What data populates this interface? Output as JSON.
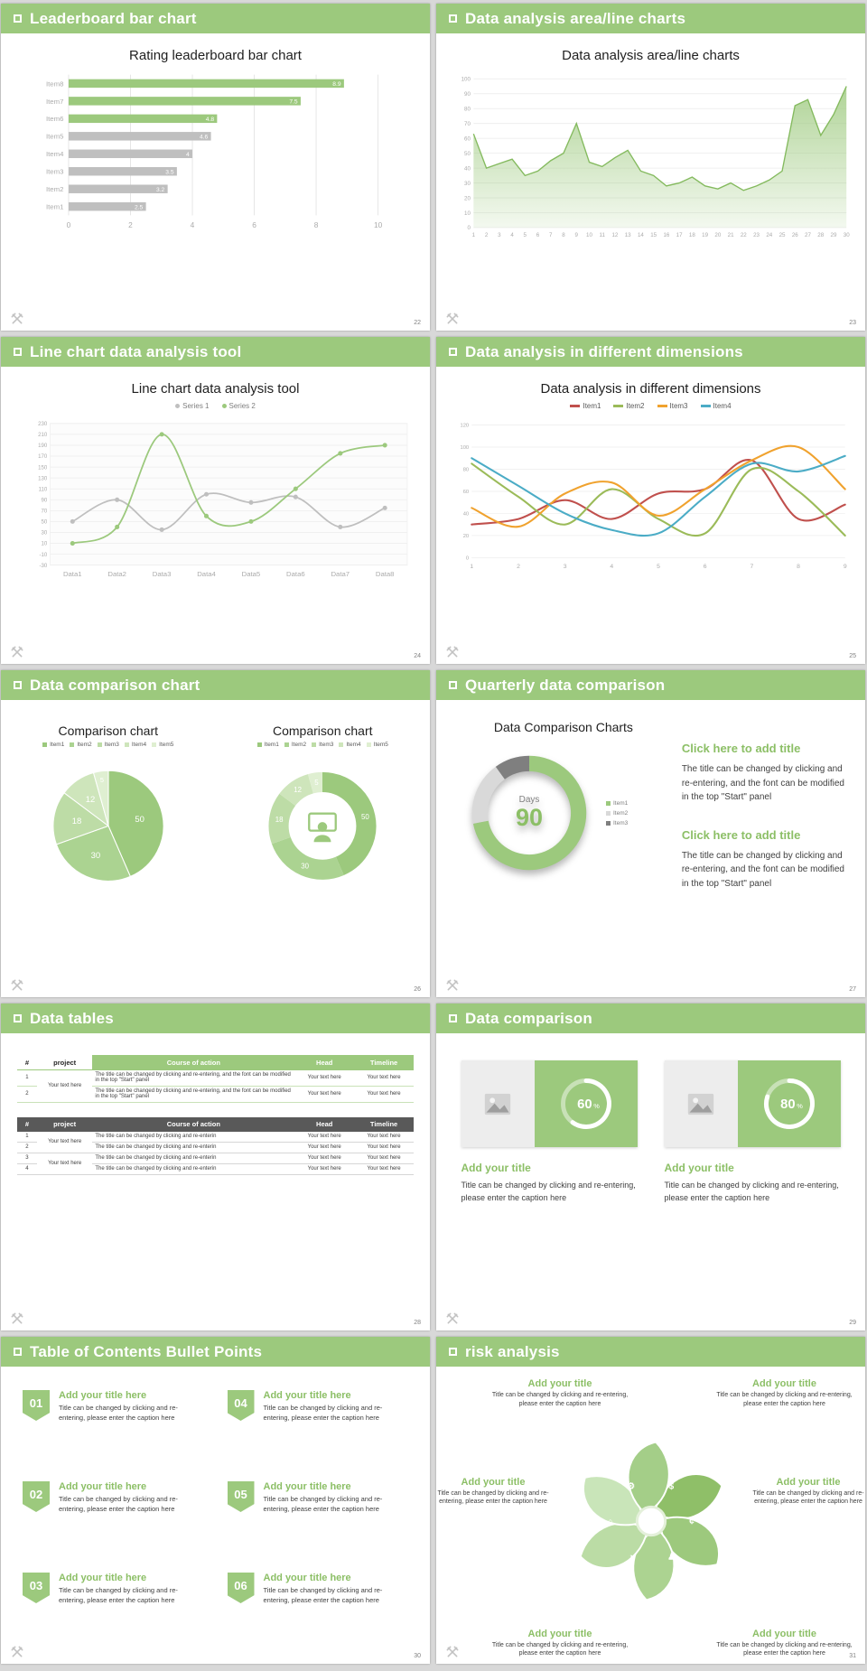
{
  "theme": {
    "green": "#9CC97D",
    "green_text": "#8CBF66",
    "gray_bar": "#BFBFBF",
    "table_dark": "#595959",
    "page_bg": "#D8D8D8"
  },
  "slides": [
    {
      "header": "Leaderboard bar chart",
      "page": "22",
      "chart_title": "Rating leaderboard bar chart"
    },
    {
      "header": "Data analysis area/line charts",
      "page": "23",
      "chart_title": "Data analysis area/line charts"
    },
    {
      "header": "Line chart data analysis tool",
      "page": "24",
      "chart_title": "Line chart data analysis tool",
      "legend": [
        "Series 1",
        "Series 2"
      ]
    },
    {
      "header": "Data analysis in different dimensions",
      "page": "25",
      "chart_title": "Data analysis in different dimensions",
      "legend": [
        "Item1",
        "Item2",
        "Item3",
        "Item4"
      ]
    },
    {
      "header": "Data comparison chart",
      "page": "26",
      "left": {
        "title": "Comparison chart",
        "legend": [
          "Item1",
          "Item2",
          "Item3",
          "Item4",
          "Item5"
        ]
      },
      "right": {
        "title": "Comparison chart",
        "legend": [
          "Item1",
          "Item2",
          "Item3",
          "Item4",
          "Item5"
        ]
      }
    },
    {
      "header": "Quarterly data comparison",
      "page": "27",
      "chart_title": "Data Comparison Charts",
      "gauge_label": "Days",
      "gauge_value": "90",
      "legend": [
        "Item1",
        "Item2",
        "Item3"
      ],
      "blocks": [
        {
          "title": "Click here to add title",
          "body": "The title can be changed by clicking and re-entering, and the font can be modified in the top \"Start\" panel"
        },
        {
          "title": "Click here to add title",
          "body": "The title can be changed by clicking and re-entering, and the font can be modified in the top \"Start\" panel"
        }
      ]
    },
    {
      "header": "Data tables",
      "page": "28"
    },
    {
      "header": "Data comparison",
      "page": "29",
      "cards": [
        {
          "percent": "60",
          "title": "Add your title",
          "body": "Title can be changed by clicking and re-entering, please enter the caption here"
        },
        {
          "percent": "80",
          "title": "Add your title",
          "body": "Title can be changed by clicking and re-entering, please enter the caption here"
        }
      ]
    },
    {
      "header": "Table of Contents Bullet Points",
      "page": "30",
      "items": [
        {
          "num": "01",
          "title": "Add your title here",
          "body": "Title can be changed by clicking and re-entering, please enter the caption here"
        },
        {
          "num": "02",
          "title": "Add your title here",
          "body": "Title can be changed by clicking and re-entering, please enter the caption here"
        },
        {
          "num": "03",
          "title": "Add your title here",
          "body": "Title can be changed by clicking and re-entering, please enter the caption here"
        },
        {
          "num": "04",
          "title": "Add your title here",
          "body": "Title can be changed by clicking and re-entering, please enter the caption here"
        },
        {
          "num": "05",
          "title": "Add your title here",
          "body": "Title can be changed by clicking and re-entering, please enter the caption here"
        },
        {
          "num": "06",
          "title": "Add your title here",
          "body": "Title can be changed by clicking and re-entering, please enter the caption here"
        }
      ]
    },
    {
      "header": "risk analysis",
      "page": "31",
      "items": [
        {
          "title": "Add your title",
          "body": "Title can be changed by clicking and re-entering, please enter the caption here"
        },
        {
          "title": "Add your title",
          "body": "Title can be changed by clicking and re-entering, please enter the caption here"
        },
        {
          "title": "Add your title",
          "body": "Title can be changed by clicking and re-entering, please enter the caption here"
        },
        {
          "title": "Add your title",
          "body": "Title can be changed by clicking and re-entering, please enter the caption here"
        },
        {
          "title": "Add your title",
          "body": "Title can be changed by clicking and re-entering, please enter the caption here"
        },
        {
          "title": "Add your title",
          "body": "Title can be changed by clicking and re-entering, please enter the caption here"
        }
      ],
      "icons": [
        {
          "name": "money-bag-icon",
          "glyph": "$"
        },
        {
          "name": "coins-icon",
          "glyph": "¢"
        },
        {
          "name": "people-icon",
          "glyph": "♟"
        },
        {
          "name": "pie-chart-icon",
          "glyph": "◔"
        },
        {
          "name": "building-icon",
          "glyph": "⌂"
        },
        {
          "name": "gear-icon",
          "glyph": "⚙"
        }
      ]
    }
  ],
  "chart_data": [
    {
      "slide": "Leaderboard bar chart",
      "type": "bar",
      "orientation": "horizontal",
      "title": "Rating leaderboard bar chart",
      "categories": [
        "Item1",
        "Item2",
        "Item3",
        "Item4",
        "Item5",
        "Item6",
        "Item7",
        "Item8"
      ],
      "values": [
        2.5,
        3.2,
        3.5,
        4,
        4.6,
        4.8,
        7.5,
        8.9
      ],
      "bar_colors": [
        "gray",
        "gray",
        "gray",
        "gray",
        "gray",
        "green",
        "green",
        "green"
      ],
      "xlim": [
        0,
        10
      ],
      "xticks": [
        0,
        2,
        4,
        6,
        8,
        10
      ]
    },
    {
      "slide": "Data analysis area/line charts",
      "type": "area",
      "title": "Data analysis area/line charts",
      "x": [
        1,
        2,
        3,
        4,
        5,
        6,
        7,
        8,
        9,
        10,
        11,
        12,
        13,
        14,
        15,
        16,
        17,
        18,
        19,
        20,
        21,
        22,
        23,
        24,
        25,
        26,
        27,
        28,
        29,
        30
      ],
      "values": [
        63,
        40,
        43,
        46,
        35,
        38,
        45,
        50,
        70,
        44,
        41,
        47,
        52,
        38,
        35,
        28,
        30,
        34,
        28,
        26,
        30,
        25,
        28,
        32,
        38,
        82,
        86,
        62,
        76,
        95
      ],
      "ylim": [
        0,
        100
      ],
      "yticks": [
        0,
        10,
        20,
        30,
        40,
        50,
        60,
        70,
        80,
        90,
        100
      ]
    },
    {
      "slide": "Line chart data analysis tool",
      "type": "line",
      "title": "Line chart data analysis tool",
      "categories": [
        "Data1",
        "Data2",
        "Data3",
        "Data4",
        "Data5",
        "Data6",
        "Data7",
        "Data8"
      ],
      "series": [
        {
          "name": "Series 1",
          "color": "#BFBFBF",
          "values": [
            50,
            90,
            35,
            100,
            85,
            95,
            40,
            75
          ]
        },
        {
          "name": "Series 2",
          "color": "#9CC97D",
          "values": [
            10,
            40,
            210,
            60,
            50,
            110,
            175,
            190
          ]
        }
      ],
      "ylim": [
        -30,
        230
      ],
      "ytick_step": 20,
      "markers": true
    },
    {
      "slide": "Data analysis in different dimensions",
      "type": "line",
      "title": "Data analysis in different dimensions",
      "x": [
        1,
        2,
        3,
        4,
        5,
        6,
        7,
        8,
        9
      ],
      "series": [
        {
          "name": "Item1",
          "color": "#C0504D",
          "values": [
            30,
            35,
            52,
            35,
            58,
            62,
            88,
            35,
            48
          ]
        },
        {
          "name": "Item2",
          "color": "#9BBB59",
          "values": [
            85,
            55,
            30,
            62,
            35,
            22,
            80,
            60,
            20
          ]
        },
        {
          "name": "Item3",
          "color": "#F0A22E",
          "values": [
            45,
            28,
            58,
            68,
            38,
            62,
            88,
            100,
            62
          ]
        },
        {
          "name": "Item4",
          "color": "#4BACC6",
          "values": [
            90,
            65,
            40,
            25,
            22,
            55,
            85,
            78,
            92
          ]
        }
      ],
      "ylim": [
        0,
        120
      ],
      "ytick_step": 20
    },
    {
      "slide": "Data comparison chart",
      "type": "pie",
      "title": "Comparison chart",
      "charts": [
        "pie",
        "donut"
      ],
      "labels": [
        "Item1",
        "Item2",
        "Item3",
        "Item4",
        "Item5"
      ],
      "values": [
        50,
        30,
        18,
        12,
        5
      ],
      "colors": [
        "#9CC97D",
        "#ABD391",
        "#BDDCA6",
        "#CEE5BB",
        "#DFEFD1"
      ]
    },
    {
      "slide": "Quarterly data comparison",
      "type": "donut",
      "title": "Data Comparison Charts",
      "center_label": "Days",
      "center_value": "90",
      "segments": [
        {
          "name": "Item1",
          "value": 72,
          "color": "#9CC97D"
        },
        {
          "name": "Item2",
          "value": 18,
          "color": "#D9D9D9"
        },
        {
          "name": "Item3",
          "value": 10,
          "color": "#7F7F7F"
        }
      ]
    },
    {
      "slide": "Data tables",
      "type": "table",
      "tables": [
        {
          "style": "green",
          "columns": [
            "#",
            "project",
            "Course of action",
            "Head",
            "Timeline"
          ],
          "project_cells": [
            "Your text here"
          ],
          "rows": [
            {
              "num": "1",
              "course": "The title can be changed by clicking and re-entering, and the font can be modified in the top \"Start\" panel",
              "head": "Your text here",
              "timeline": "Your text here"
            },
            {
              "num": "2",
              "course": "The title can be changed by clicking and re-entering, and the font can be modified in the top \"Start\" panel",
              "head": "Your text here",
              "timeline": "Your text here"
            }
          ]
        },
        {
          "style": "dark",
          "columns": [
            "#",
            "project",
            "Course of action",
            "Head",
            "Timeline"
          ],
          "project_cells": [
            "Your text here",
            "Your text here"
          ],
          "rows": [
            {
              "num": "1",
              "course": "The title can be changed by clicking and re-enterin",
              "head": "Your text here",
              "timeline": "Your text here"
            },
            {
              "num": "2",
              "course": "The title can be changed by clicking and re-enterin",
              "head": "Your text here",
              "timeline": "Your text here"
            },
            {
              "num": "3",
              "course": "The title can be changed by clicking and re-enterin",
              "head": "Your text here",
              "timeline": "Your text here"
            },
            {
              "num": "4",
              "course": "The title can be changed by clicking and re-enterin",
              "head": "Your text here",
              "timeline": "Your text here"
            }
          ]
        }
      ]
    },
    {
      "slide": "Data comparison",
      "type": "donut",
      "values": [
        60,
        80
      ],
      "unit": "%"
    }
  ]
}
